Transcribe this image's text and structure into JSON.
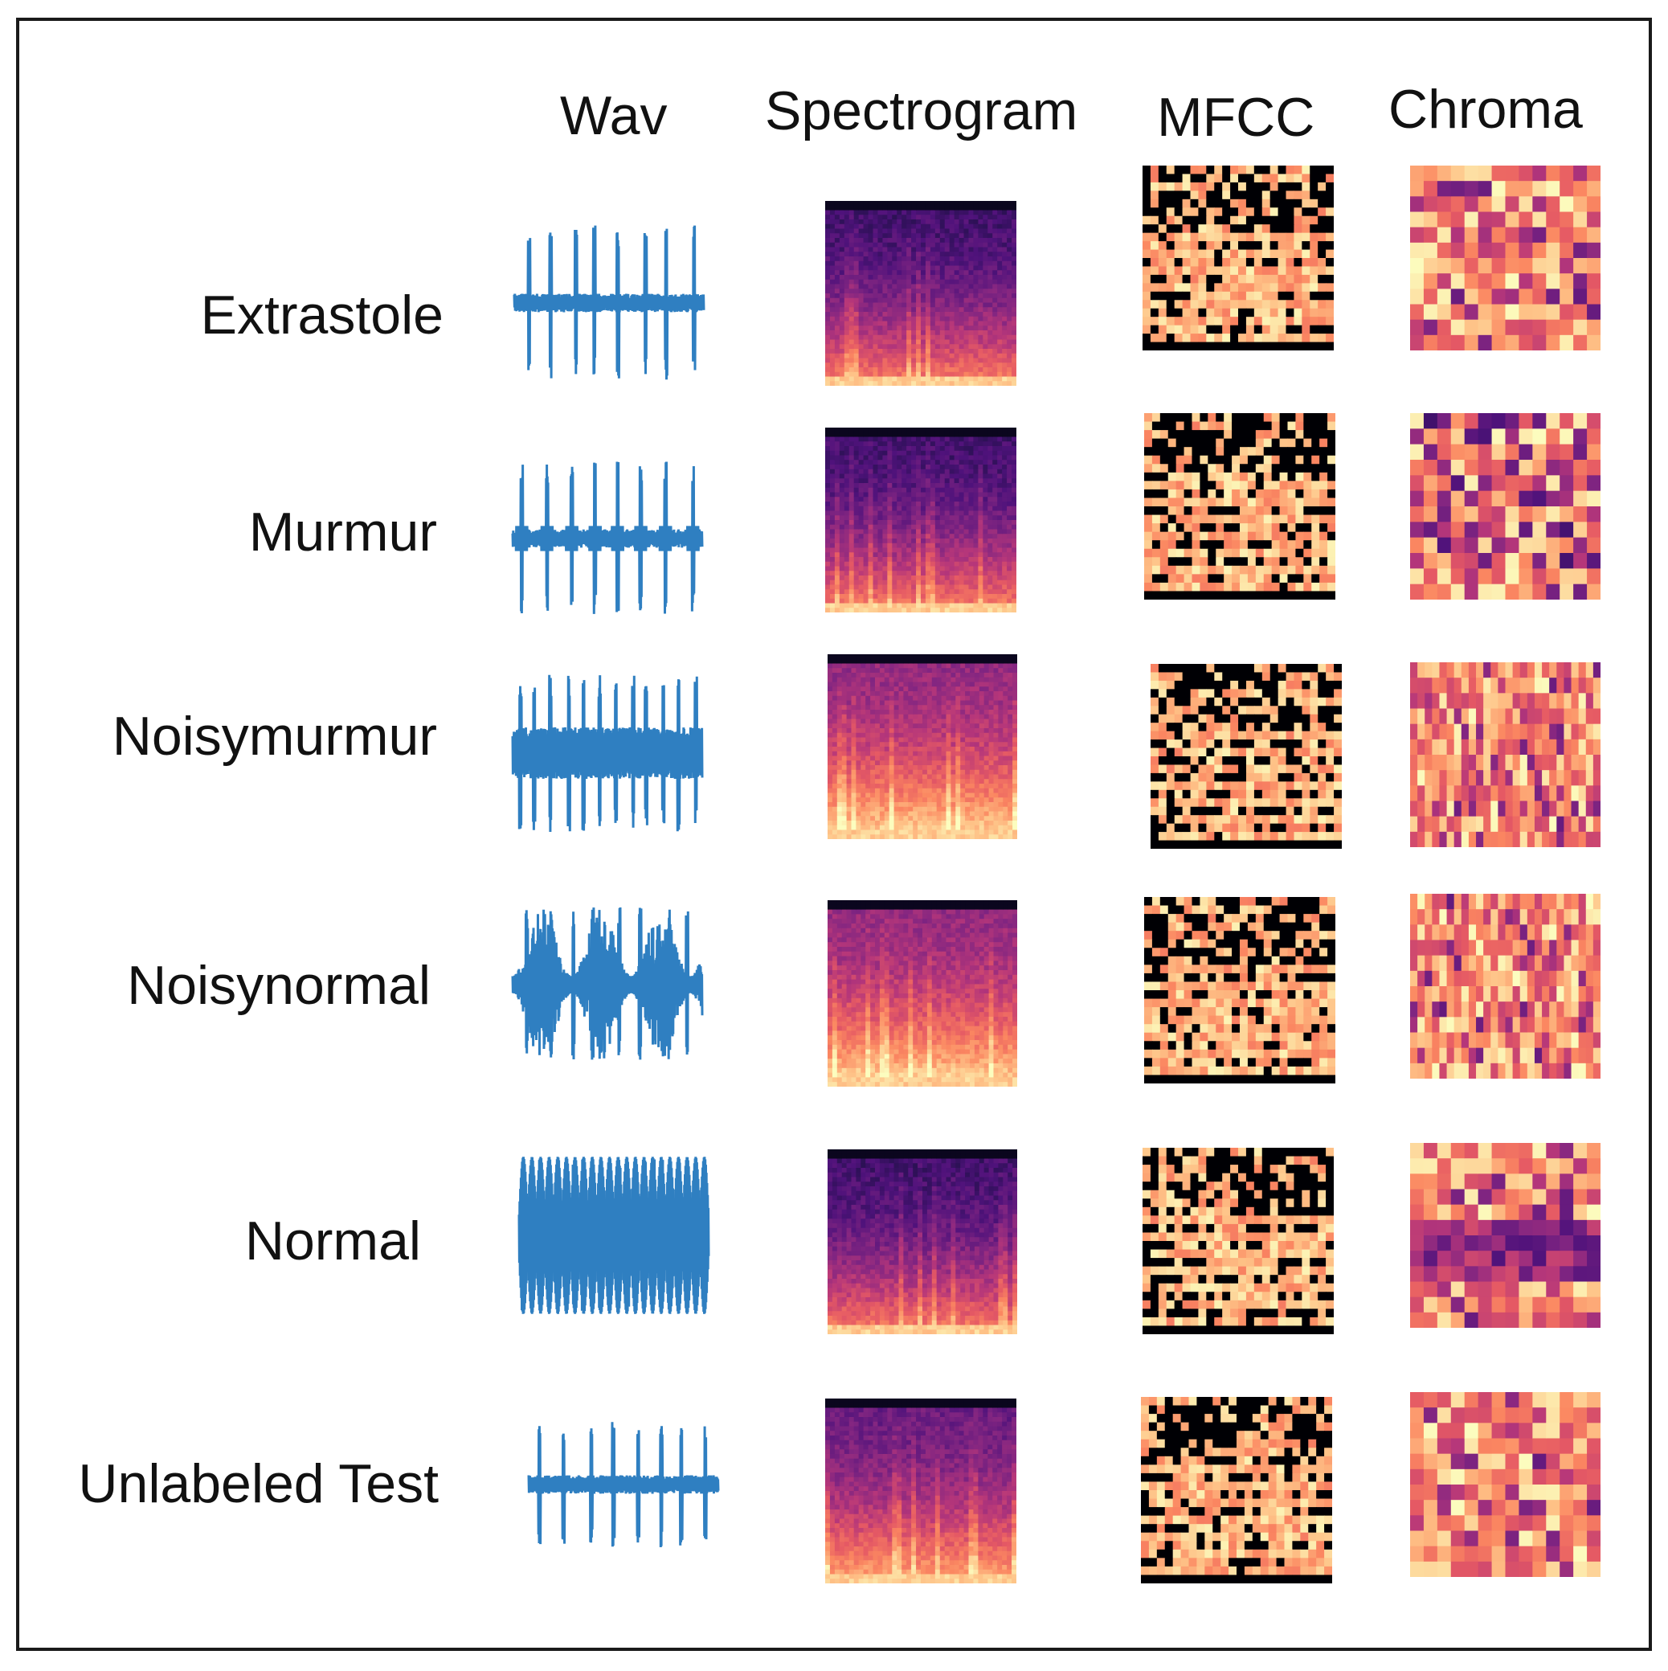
{
  "columns": {
    "wav": "Wav",
    "spectrogram": "Spectrogram",
    "mfcc": "MFCC",
    "chroma": "Chroma"
  },
  "rows": [
    {
      "label": "Extrastole"
    },
    {
      "label": "Murmur"
    },
    {
      "label": "Noisymurmur"
    },
    {
      "label": "Noisynormal"
    },
    {
      "label": "Normal"
    },
    {
      "label": "Unlabeled Test"
    }
  ],
  "colors": {
    "waveform": "#2f7fc1",
    "border": "#1a1a1a",
    "magma": [
      "#000004",
      "#1c1044",
      "#4f127b",
      "#812581",
      "#b5367a",
      "#e55964",
      "#fb8761",
      "#fec287",
      "#fcfdbf"
    ]
  }
}
